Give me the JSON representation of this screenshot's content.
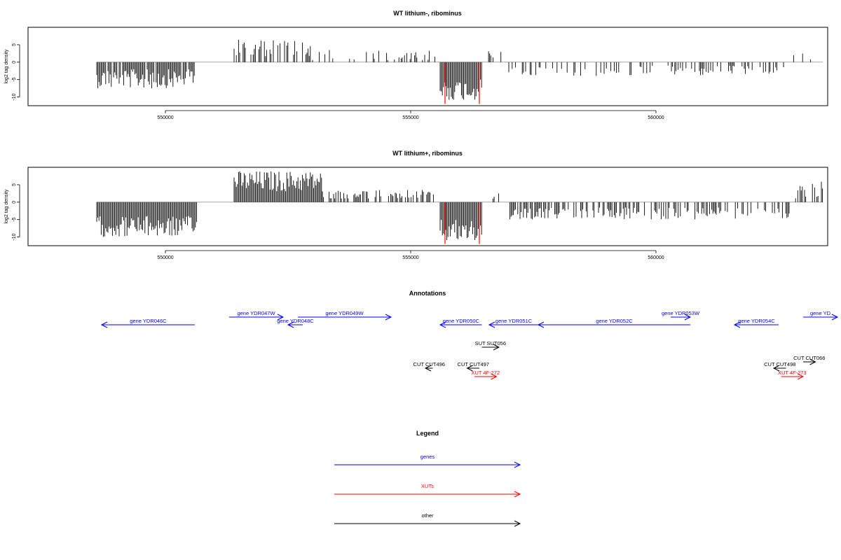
{
  "chart_data": [
    {
      "type": "bar",
      "title": "WT lithium-, ribominus",
      "ylabel": "log2 tag density",
      "xlim": [
        547200,
        563500
      ],
      "ylim": [
        -12.5,
        10
      ],
      "yticks": [
        -10,
        -5,
        0,
        5
      ],
      "xticks": [
        550000,
        555000,
        560000
      ],
      "xtick_labels": [
        "550000",
        "555000",
        "560000"
      ],
      "segments": [
        {
          "start": 548600,
          "end": 550600,
          "strand": "minus",
          "min_val": -2,
          "max_val": -7.5,
          "density": 0.85,
          "color": "#000000"
        },
        {
          "start": 551400,
          "end": 553000,
          "strand": "plus",
          "min_val": 1.5,
          "max_val": 6.5,
          "density": 0.5,
          "color": "#000000"
        },
        {
          "start": 553000,
          "end": 555600,
          "strand": "plus",
          "min_val": 0.5,
          "max_val": 3.5,
          "density": 0.25,
          "color": "#000000"
        },
        {
          "start": 555600,
          "end": 556450,
          "strand": "minus",
          "min_val": -5,
          "max_val": -11,
          "density": 1.0,
          "color": "#000000"
        },
        {
          "start": 556450,
          "end": 557000,
          "strand": "plus",
          "min_val": 1,
          "max_val": 3.5,
          "density": 0.1,
          "color": "#000000"
        },
        {
          "start": 557000,
          "end": 562600,
          "strand": "minus",
          "min_val": -1,
          "max_val": -4,
          "density": 0.3,
          "color": "#000000"
        },
        {
          "start": 562600,
          "end": 563400,
          "strand": "plus",
          "min_val": 0.5,
          "max_val": 3,
          "density": 0.1,
          "color": "#000000"
        }
      ],
      "highlights": [
        {
          "x": 555700,
          "value": -12,
          "color": "#ff0000"
        },
        {
          "x": 556400,
          "value": -12,
          "color": "#ff0000"
        }
      ]
    },
    {
      "type": "bar",
      "title": "WT lithium+, ribominus",
      "ylabel": "log2 tag density",
      "xlim": [
        547200,
        563500
      ],
      "ylim": [
        -12.5,
        10
      ],
      "yticks": [
        -10,
        -5,
        0,
        5
      ],
      "xticks": [
        550000,
        555000,
        560000
      ],
      "xtick_labels": [
        "550000",
        "555000",
        "560000"
      ],
      "segments": [
        {
          "start": 548600,
          "end": 550650,
          "strand": "minus",
          "min_val": -4,
          "max_val": -10,
          "density": 1.0,
          "color": "#000000"
        },
        {
          "start": 551400,
          "end": 553200,
          "strand": "plus",
          "min_val": 3,
          "max_val": 9,
          "density": 1.0,
          "color": "#000000"
        },
        {
          "start": 553200,
          "end": 555600,
          "strand": "plus",
          "min_val": 1,
          "max_val": 3.5,
          "density": 0.5,
          "color": "#000000"
        },
        {
          "start": 555600,
          "end": 556450,
          "strand": "minus",
          "min_val": -5,
          "max_val": -11.5,
          "density": 1.0,
          "color": "#000000"
        },
        {
          "start": 556450,
          "end": 557000,
          "strand": "plus",
          "min_val": 1,
          "max_val": 3,
          "density": 0.2,
          "color": "#000000"
        },
        {
          "start": 557000,
          "end": 562800,
          "strand": "minus",
          "min_val": -1.5,
          "max_val": -5,
          "density": 0.5,
          "color": "#000000"
        },
        {
          "start": 562800,
          "end": 563400,
          "strand": "plus",
          "min_val": 1,
          "max_val": 6,
          "density": 0.4,
          "color": "#000000"
        }
      ],
      "highlights": [
        {
          "x": 555700,
          "value": -12,
          "color": "#ff0000"
        },
        {
          "x": 556400,
          "value": -12,
          "color": "#ff0000"
        }
      ]
    }
  ],
  "annotations": {
    "title": "Annotations",
    "xlim": [
      547200,
      563500
    ],
    "features": [
      {
        "label": "gene YDR046C",
        "start": 548700,
        "end": 550600,
        "strand": "-",
        "row": 1,
        "color": "#0000ff"
      },
      {
        "label": "gene YDR047W",
        "start": 551300,
        "end": 552400,
        "strand": "+",
        "row": 0,
        "color": "#0000ff"
      },
      {
        "label": "gene YDR048C",
        "start": 552500,
        "end": 552800,
        "strand": "-",
        "row": 1,
        "color": "#0000ff"
      },
      {
        "label": "gene YDR049W",
        "start": 552700,
        "end": 554600,
        "strand": "+",
        "row": 0,
        "color": "#0000ff"
      },
      {
        "label": "gene YDR050C",
        "start": 555600,
        "end": 556450,
        "strand": "-",
        "row": 1,
        "color": "#0000ff"
      },
      {
        "label": "gene YDR051C",
        "start": 556600,
        "end": 557600,
        "strand": "-",
        "row": 1,
        "color": "#0000ff"
      },
      {
        "label": "gene YDR052C",
        "start": 557600,
        "end": 560700,
        "strand": "-",
        "row": 1,
        "color": "#0000ff"
      },
      {
        "label": "gene YDR053W",
        "start": 560300,
        "end": 560700,
        "strand": "+",
        "row": 0,
        "color": "#0000ff"
      },
      {
        "label": "gene YDR054C",
        "start": 561600,
        "end": 562500,
        "strand": "-",
        "row": 1,
        "color": "#0000ff"
      },
      {
        "label": "gene YD",
        "start": 563000,
        "end": 563700,
        "strand": "+",
        "row": 0,
        "color": "#0000ff"
      },
      {
        "label": "SUT SUT056",
        "start": 556450,
        "end": 556800,
        "strand": "+",
        "row": 2,
        "color": "#000000"
      },
      {
        "label": "CUT CUT496",
        "start": 555300,
        "end": 555450,
        "strand": "-",
        "row": 3,
        "color": "#000000"
      },
      {
        "label": "CUT CUT497",
        "start": 556150,
        "end": 556400,
        "strand": "-",
        "row": 3,
        "color": "#000000"
      },
      {
        "label": "XUT 4F-272",
        "start": 556300,
        "end": 556750,
        "strand": "+",
        "row": 4,
        "color": "#ff0000"
      },
      {
        "label": "CUT CUT066",
        "start": 563000,
        "end": 563250,
        "strand": "+",
        "row": 5,
        "color": "#000000"
      },
      {
        "label": "CUT CUT498",
        "start": 562400,
        "end": 562650,
        "strand": "-",
        "row": 3,
        "color": "#000000"
      },
      {
        "label": "XUT 4F-273",
        "start": 562550,
        "end": 563000,
        "strand": "+",
        "row": 4,
        "color": "#ff0000"
      }
    ]
  },
  "legend": {
    "title": "Legend",
    "items": [
      {
        "label": "genes",
        "color": "#0000ff"
      },
      {
        "label": "XUTs",
        "color": "#ff0000"
      },
      {
        "label": "other",
        "color": "#000000"
      }
    ]
  }
}
